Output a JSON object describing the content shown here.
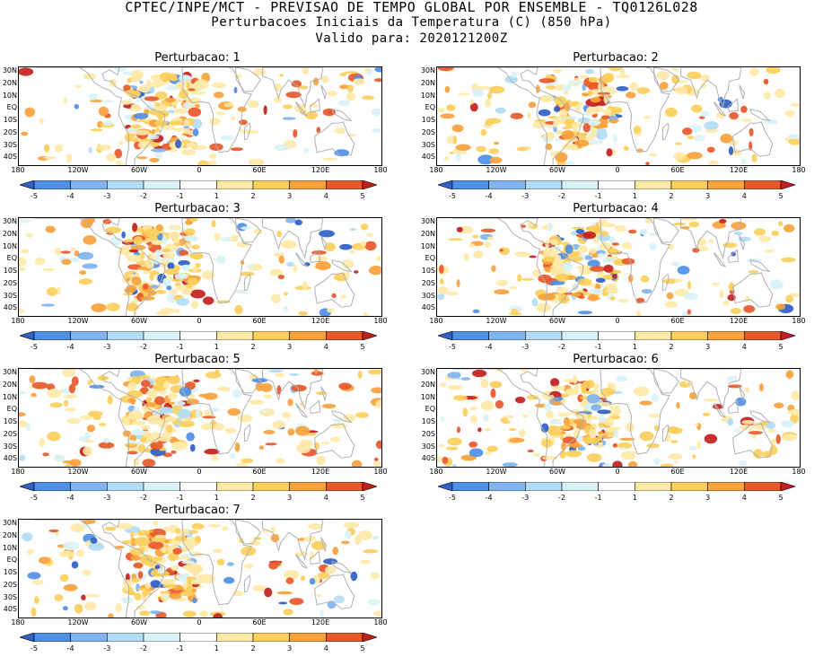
{
  "header": {
    "line1": "CPTEC/INPE/MCT - PREVISAO DE TEMPO GLOBAL POR ENSEMBLE - TQ0126L028",
    "line2": "Perturbacoes Iniciais da Temperatura (C) (850 hPa)",
    "line3": "Valido para: 2020121200Z"
  },
  "panels": [
    {
      "title": "Perturbacao: 1"
    },
    {
      "title": "Perturbacao: 2"
    },
    {
      "title": "Perturbacao: 3"
    },
    {
      "title": "Perturbacao: 4"
    },
    {
      "title": "Perturbacao: 5"
    },
    {
      "title": "Perturbacao: 6"
    },
    {
      "title": "Perturbacao: 7"
    }
  ],
  "lat_labels": [
    "30N",
    "20N",
    "10N",
    "EQ",
    "10S",
    "20S",
    "30S",
    "40S"
  ],
  "lon_labels": [
    "180",
    "120W",
    "60W",
    "0",
    "60E",
    "120E",
    "180"
  ],
  "colorbar": {
    "labels": [
      "-5",
      "-4",
      "-3",
      "-2",
      "-1",
      "1",
      "2",
      "3",
      "4",
      "5"
    ],
    "colors": [
      "#2f60c8",
      "#4f8fe6",
      "#7fb3f2",
      "#b2dcf5",
      "#d9f2f7",
      "#ffffff",
      "#ffe9a8",
      "#fccf5c",
      "#f9a23c",
      "#e8582a",
      "#c41e1e"
    ]
  },
  "land_color": "#b0b0b0"
}
